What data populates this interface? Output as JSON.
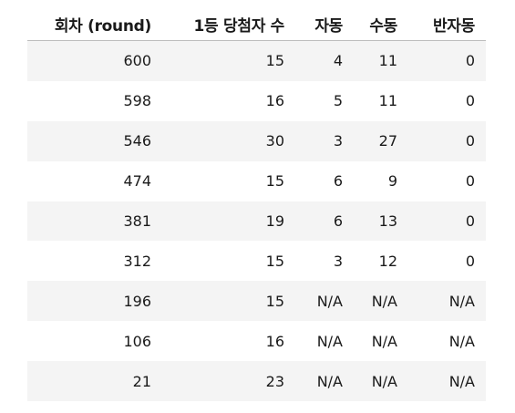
{
  "table": {
    "columns": [
      "회차 (round)",
      "1등 당첨자 수",
      "자동",
      "수동",
      "반자동"
    ],
    "rows": [
      [
        "600",
        "15",
        "4",
        "11",
        "0"
      ],
      [
        "598",
        "16",
        "5",
        "11",
        "0"
      ],
      [
        "546",
        "30",
        "3",
        "27",
        "0"
      ],
      [
        "474",
        "15",
        "6",
        "9",
        "0"
      ],
      [
        "381",
        "19",
        "6",
        "13",
        "0"
      ],
      [
        "312",
        "15",
        "3",
        "12",
        "0"
      ],
      [
        "196",
        "15",
        "N/A",
        "N/A",
        "N/A"
      ],
      [
        "106",
        "16",
        "N/A",
        "N/A",
        "N/A"
      ],
      [
        "21",
        "23",
        "N/A",
        "N/A",
        "N/A"
      ]
    ]
  }
}
